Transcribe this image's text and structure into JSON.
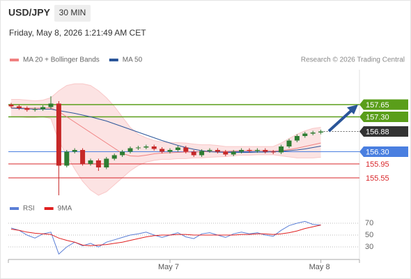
{
  "header": {
    "symbol": "USD/JPY",
    "timeframe": "30 MIN",
    "timestamp": "Friday, May 8, 2026 1:21:49 AM CET",
    "copyright": "Research © 2026 Trading Central"
  },
  "chart_data": [
    {
      "type": "candlestick",
      "up_color": "#2e7d32",
      "down_color": "#c62828",
      "open": [
        157.65,
        157.6,
        157.55,
        157.5,
        157.52,
        157.58,
        157.68,
        155.9,
        156.3,
        156.35,
        155.95,
        156.05,
        155.85,
        156.1,
        156.2,
        156.3,
        156.4,
        156.42,
        156.45,
        156.38,
        156.3,
        156.35,
        156.42,
        156.3,
        156.2,
        156.32,
        156.35,
        156.3,
        156.22,
        156.3,
        156.35,
        156.32,
        156.35,
        156.3,
        156.28,
        156.45,
        156.62,
        156.75,
        156.82,
        156.85
      ],
      "high": [
        157.7,
        157.65,
        157.6,
        157.57,
        157.63,
        157.89,
        157.75,
        156.35,
        156.4,
        156.4,
        156.1,
        156.1,
        156.15,
        156.25,
        156.35,
        156.45,
        156.47,
        156.5,
        156.5,
        156.43,
        156.4,
        156.47,
        156.47,
        156.35,
        156.37,
        156.4,
        156.4,
        156.35,
        156.35,
        156.4,
        156.4,
        156.4,
        156.4,
        156.35,
        156.5,
        156.67,
        156.8,
        156.87,
        156.9,
        156.93
      ],
      "low": [
        157.55,
        157.5,
        157.45,
        157.45,
        157.47,
        157.53,
        155.05,
        155.85,
        156.25,
        155.9,
        155.9,
        155.75,
        155.8,
        156.05,
        156.15,
        156.25,
        156.35,
        156.37,
        156.33,
        156.25,
        156.25,
        156.3,
        156.25,
        156.15,
        156.15,
        156.27,
        156.25,
        156.17,
        156.17,
        156.25,
        156.27,
        156.27,
        156.25,
        156.23,
        156.23,
        156.4,
        156.57,
        156.7,
        156.77,
        156.8
      ],
      "close": [
        157.6,
        157.55,
        157.5,
        157.52,
        157.58,
        157.68,
        155.9,
        156.3,
        156.35,
        155.95,
        156.05,
        155.85,
        156.1,
        156.2,
        156.3,
        156.4,
        156.42,
        156.45,
        156.38,
        156.3,
        156.35,
        156.42,
        156.3,
        156.2,
        156.32,
        156.35,
        156.3,
        156.22,
        156.3,
        156.35,
        156.32,
        156.35,
        156.3,
        156.28,
        156.45,
        156.62,
        156.75,
        156.82,
        156.85,
        156.88
      ],
      "series": [
        {
          "name": "MA 20 + Bollinger Bands",
          "color": "#f08080",
          "values": [
            157.56,
            157.56,
            157.55,
            157.55,
            157.55,
            157.56,
            157.45,
            157.3,
            157.15,
            157.0,
            156.85,
            156.7,
            156.55,
            156.4,
            156.25,
            156.18,
            156.17,
            156.2,
            156.24,
            156.26,
            156.27,
            156.28,
            156.29,
            156.29,
            156.3,
            156.3,
            156.31,
            156.31,
            156.32,
            156.32,
            156.33,
            156.33,
            156.33,
            156.32,
            156.33,
            156.36,
            156.4,
            156.45,
            156.5,
            156.55
          ],
          "upper": [
            157.8,
            157.8,
            157.78,
            157.76,
            157.78,
            157.85,
            158.05,
            158.2,
            158.25,
            158.25,
            158.2,
            158.05,
            157.85,
            157.6,
            157.3,
            157.0,
            156.8,
            156.7,
            156.62,
            156.58,
            156.56,
            156.56,
            156.55,
            156.52,
            156.5,
            156.5,
            156.48,
            156.45,
            156.45,
            156.45,
            156.45,
            156.45,
            156.45,
            156.45,
            156.55,
            156.68,
            156.8,
            156.9,
            156.97,
            157.0
          ],
          "lower": [
            157.3,
            157.3,
            157.28,
            157.28,
            157.3,
            157.25,
            156.6,
            156.2,
            155.8,
            155.45,
            155.2,
            155.05,
            155.15,
            155.35,
            155.55,
            155.75,
            155.9,
            156.0,
            156.05,
            156.08,
            156.08,
            156.1,
            156.1,
            156.12,
            156.12,
            156.14,
            156.15,
            156.16,
            156.18,
            156.2,
            156.2,
            156.21,
            156.21,
            156.21,
            156.18,
            156.15,
            156.12,
            156.12,
            156.12,
            156.14
          ]
        },
        {
          "name": "MA 50",
          "color": "#2a5599",
          "values": [
            157.55,
            157.54,
            157.53,
            157.52,
            157.52,
            157.52,
            157.48,
            157.44,
            157.4,
            157.35,
            157.3,
            157.24,
            157.18,
            157.1,
            157.02,
            156.94,
            156.86,
            156.78,
            156.7,
            156.62,
            156.55,
            156.48,
            156.42,
            156.37,
            156.33,
            156.3,
            156.29,
            156.28,
            156.28,
            156.28,
            156.28,
            156.29,
            156.29,
            156.3,
            156.31,
            156.33,
            156.35,
            156.38,
            156.42,
            156.46
          ]
        }
      ],
      "levels": [
        {
          "value": 157.65,
          "label": "157.65",
          "color": "#5a9e1a",
          "boxed": true
        },
        {
          "value": 157.3,
          "label": "157.30",
          "color": "#5a9e1a",
          "boxed": true
        },
        {
          "value": 156.88,
          "label": "156.88",
          "color": "#333333",
          "boxed": true
        },
        {
          "value": 156.3,
          "label": "156.30",
          "color": "#4a7fe0",
          "boxed": true
        },
        {
          "value": 155.95,
          "label": "155.95",
          "color": "#d9262a",
          "boxed": false
        },
        {
          "value": 155.55,
          "label": "155.55",
          "color": "#d9262a",
          "boxed": false
        }
      ],
      "ylim": [
        154.95,
        158.35
      ]
    },
    {
      "type": "line",
      "categories": [
        null,
        null,
        null,
        null,
        null,
        null,
        null,
        null,
        null,
        null,
        null,
        null,
        null,
        null,
        null,
        null,
        null,
        null,
        null,
        null,
        "May 7",
        null,
        null,
        null,
        null,
        null,
        null,
        null,
        null,
        null,
        null,
        null,
        null,
        null,
        null,
        null,
        null,
        null,
        null,
        "May 8"
      ],
      "series": [
        {
          "name": "RSI",
          "color": "#5b7fd6",
          "values": [
            62,
            58,
            50,
            45,
            52,
            55,
            18,
            30,
            38,
            32,
            36,
            30,
            38,
            42,
            46,
            50,
            52,
            55,
            50,
            46,
            50,
            54,
            47,
            44,
            52,
            54,
            50,
            46,
            52,
            55,
            52,
            54,
            50,
            48,
            58,
            66,
            70,
            73,
            68,
            67
          ]
        },
        {
          "name": "9MA",
          "color": "#e02020",
          "values": [
            60,
            58,
            55,
            53,
            52,
            51,
            45,
            41,
            38,
            33,
            32,
            33,
            34,
            36,
            38,
            41,
            44,
            47,
            49,
            50,
            50,
            51,
            51,
            50,
            50,
            50,
            50,
            50,
            50,
            51,
            51,
            52,
            52,
            51,
            52,
            54,
            57,
            61,
            64,
            67
          ]
        }
      ],
      "ylim": [
        10,
        80
      ],
      "yticks": [
        30,
        50,
        70
      ]
    }
  ]
}
